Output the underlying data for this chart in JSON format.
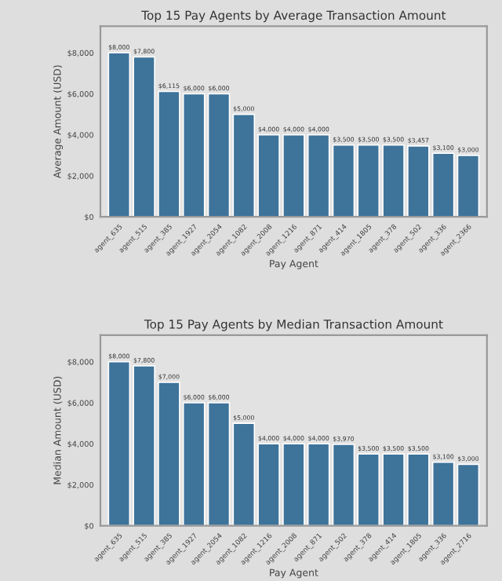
{
  "chart_data": [
    {
      "type": "bar",
      "title": "Top 15 Pay Agents by Average Transaction Amount",
      "xlabel": "Pay Agent",
      "ylabel": "Average Amount (USD)",
      "categories": [
        "agent_635",
        "agent_515",
        "agent_385",
        "agent_1927",
        "agent_2054",
        "agent_1082",
        "agent_2008",
        "agent_1216",
        "agent_871",
        "agent_414",
        "agent_1805",
        "agent_378",
        "agent_502",
        "agent_336",
        "agent_2366"
      ],
      "values": [
        8000,
        7800,
        6115,
        6000,
        6000,
        5000,
        4000,
        4000,
        4000,
        3500,
        3500,
        3500,
        3457,
        3100,
        3000
      ],
      "value_labels": [
        "$8,000",
        "$7,800",
        "$6,115",
        "$6,000",
        "$6,000",
        "$5,000",
        "$4,000",
        "$4,000",
        "$4,000",
        "$3,500",
        "$3,500",
        "$3,500",
        "$3,457",
        "$3,100",
        "$3,000"
      ],
      "color": "#2f76a9",
      "ylim": [
        0,
        9300
      ],
      "yticks": [
        {
          "value": 0,
          "label": "$0"
        },
        {
          "value": 2000,
          "label": "$2,000"
        },
        {
          "value": 4000,
          "label": "$4,000"
        },
        {
          "value": 6000,
          "label": "$6,000"
        },
        {
          "value": 8000,
          "label": "$8,000"
        }
      ],
      "grid": false,
      "legend": false
    },
    {
      "type": "bar",
      "title": "Top 15 Pay Agents by Median Transaction Amount",
      "xlabel": "Pay Agent",
      "ylabel": "Median Amount (USD)",
      "categories": [
        "agent_635",
        "agent_515",
        "agent_385",
        "agent_1927",
        "agent_2054",
        "agent_1082",
        "agent_1216",
        "agent_2008",
        "agent_871",
        "agent_502",
        "agent_378",
        "agent_414",
        "agent_1805",
        "agent_336",
        "agent_2716"
      ],
      "values": [
        8000,
        7800,
        7000,
        6000,
        6000,
        5000,
        4000,
        4000,
        4000,
        3970,
        3500,
        3500,
        3500,
        3100,
        3000
      ],
      "value_labels": [
        "$8,000",
        "$7,800",
        "$7,000",
        "$6,000",
        "$6,000",
        "$5,000",
        "$4,000",
        "$4,000",
        "$4,000",
        "$3,970",
        "$3,500",
        "$3,500",
        "$3,500",
        "$3,100",
        "$3,000"
      ],
      "color": "#2f76a9",
      "ylim": [
        0,
        9300
      ],
      "yticks": [
        {
          "value": 0,
          "label": "$0"
        },
        {
          "value": 2000,
          "label": "$2,000"
        },
        {
          "value": 4000,
          "label": "$4,000"
        },
        {
          "value": 6000,
          "label": "$6,000"
        },
        {
          "value": 8000,
          "label": "$8,000"
        }
      ],
      "grid": false,
      "legend": false
    }
  ]
}
